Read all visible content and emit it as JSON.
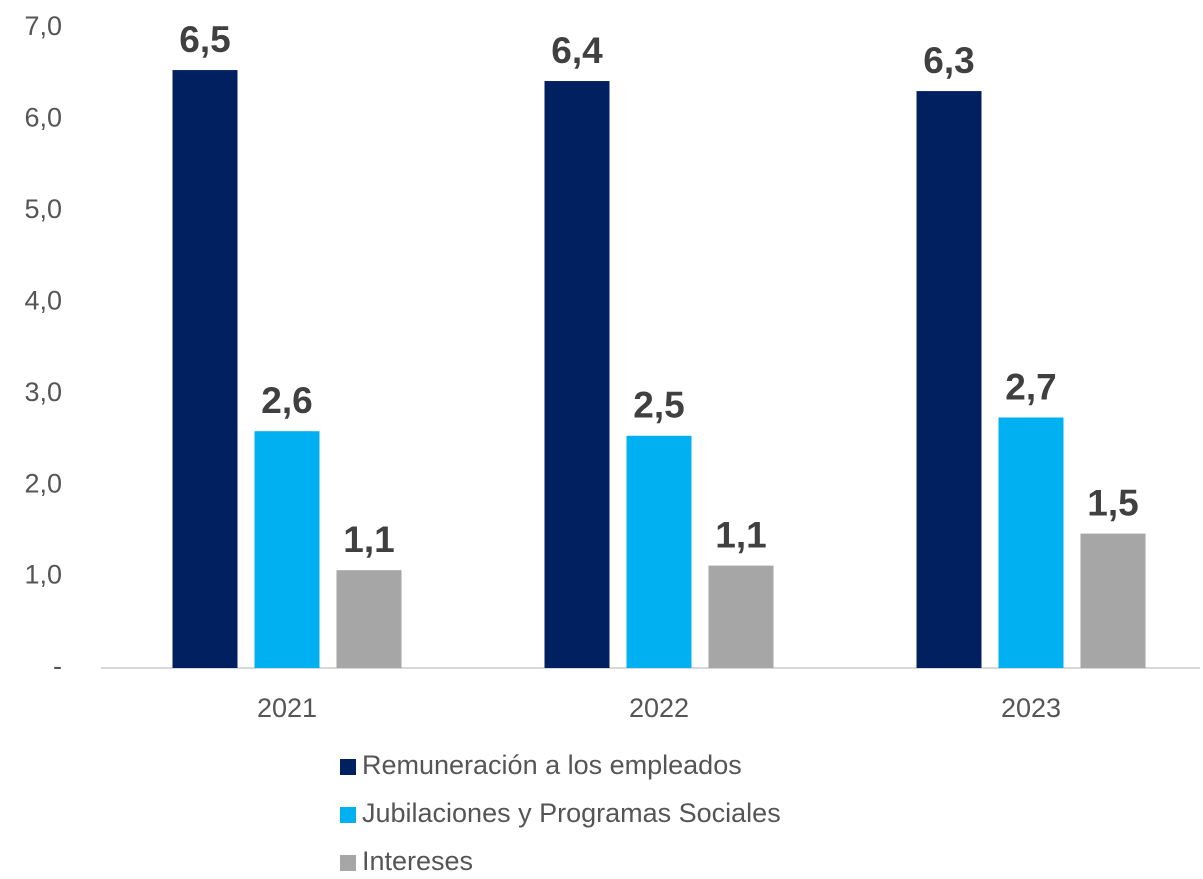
{
  "chart_data": {
    "type": "bar",
    "categories": [
      "2021",
      "2022",
      "2023"
    ],
    "series": [
      {
        "name": "Remuneración a los empleados",
        "color": "#002060",
        "values": [
          6.54,
          6.42,
          6.31
        ],
        "value_labels": [
          "6,5",
          "6,4",
          "6,3"
        ]
      },
      {
        "name": "Jubilaciones y Programas Sociales",
        "color": "#00b0f0",
        "values": [
          2.59,
          2.54,
          2.74
        ],
        "value_labels": [
          "2,6",
          "2,5",
          "2,7"
        ]
      },
      {
        "name": "Intereses",
        "color": "#a6a6a6",
        "values": [
          1.07,
          1.12,
          1.47
        ],
        "value_labels": [
          "1,1",
          "1,1",
          "1,5"
        ]
      }
    ],
    "ylim": [
      0,
      7
    ],
    "yticks": [
      {
        "value": 0,
        "label": "-"
      },
      {
        "value": 1,
        "label": "1,0"
      },
      {
        "value": 2,
        "label": "2,0"
      },
      {
        "value": 3,
        "label": "3,0"
      },
      {
        "value": 4,
        "label": "4,0"
      },
      {
        "value": 5,
        "label": "5,0"
      },
      {
        "value": 6,
        "label": "6,0"
      },
      {
        "value": 7,
        "label": "7,0"
      }
    ],
    "grid": false,
    "legend": "bottom"
  }
}
